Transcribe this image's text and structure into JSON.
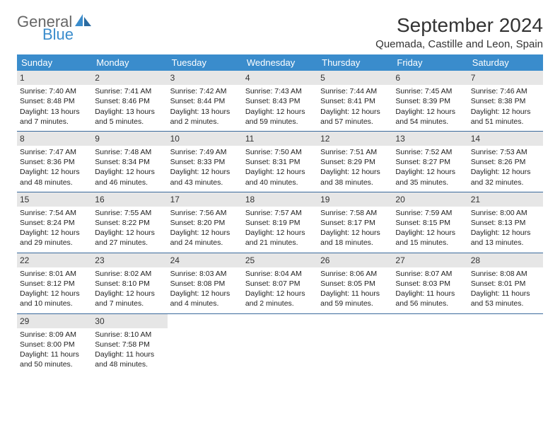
{
  "brand": {
    "part1": "General",
    "part2": "Blue"
  },
  "title": "September 2024",
  "subtitle": "Quemada, Castille and Leon, Spain",
  "colors": {
    "header_bg": "#3a8ccc",
    "header_text": "#ffffff",
    "daynum_bg": "#e6e6e6",
    "week_border": "#3a6a9c",
    "logo_gray": "#666666",
    "logo_blue": "#3a8ccc"
  },
  "day_headers": [
    "Sunday",
    "Monday",
    "Tuesday",
    "Wednesday",
    "Thursday",
    "Friday",
    "Saturday"
  ],
  "weeks": [
    [
      {
        "n": "1",
        "sunrise": "Sunrise: 7:40 AM",
        "sunset": "Sunset: 8:48 PM",
        "daylight": "Daylight: 13 hours and 7 minutes."
      },
      {
        "n": "2",
        "sunrise": "Sunrise: 7:41 AM",
        "sunset": "Sunset: 8:46 PM",
        "daylight": "Daylight: 13 hours and 5 minutes."
      },
      {
        "n": "3",
        "sunrise": "Sunrise: 7:42 AM",
        "sunset": "Sunset: 8:44 PM",
        "daylight": "Daylight: 13 hours and 2 minutes."
      },
      {
        "n": "4",
        "sunrise": "Sunrise: 7:43 AM",
        "sunset": "Sunset: 8:43 PM",
        "daylight": "Daylight: 12 hours and 59 minutes."
      },
      {
        "n": "5",
        "sunrise": "Sunrise: 7:44 AM",
        "sunset": "Sunset: 8:41 PM",
        "daylight": "Daylight: 12 hours and 57 minutes."
      },
      {
        "n": "6",
        "sunrise": "Sunrise: 7:45 AM",
        "sunset": "Sunset: 8:39 PM",
        "daylight": "Daylight: 12 hours and 54 minutes."
      },
      {
        "n": "7",
        "sunrise": "Sunrise: 7:46 AM",
        "sunset": "Sunset: 8:38 PM",
        "daylight": "Daylight: 12 hours and 51 minutes."
      }
    ],
    [
      {
        "n": "8",
        "sunrise": "Sunrise: 7:47 AM",
        "sunset": "Sunset: 8:36 PM",
        "daylight": "Daylight: 12 hours and 48 minutes."
      },
      {
        "n": "9",
        "sunrise": "Sunrise: 7:48 AM",
        "sunset": "Sunset: 8:34 PM",
        "daylight": "Daylight: 12 hours and 46 minutes."
      },
      {
        "n": "10",
        "sunrise": "Sunrise: 7:49 AM",
        "sunset": "Sunset: 8:33 PM",
        "daylight": "Daylight: 12 hours and 43 minutes."
      },
      {
        "n": "11",
        "sunrise": "Sunrise: 7:50 AM",
        "sunset": "Sunset: 8:31 PM",
        "daylight": "Daylight: 12 hours and 40 minutes."
      },
      {
        "n": "12",
        "sunrise": "Sunrise: 7:51 AM",
        "sunset": "Sunset: 8:29 PM",
        "daylight": "Daylight: 12 hours and 38 minutes."
      },
      {
        "n": "13",
        "sunrise": "Sunrise: 7:52 AM",
        "sunset": "Sunset: 8:27 PM",
        "daylight": "Daylight: 12 hours and 35 minutes."
      },
      {
        "n": "14",
        "sunrise": "Sunrise: 7:53 AM",
        "sunset": "Sunset: 8:26 PM",
        "daylight": "Daylight: 12 hours and 32 minutes."
      }
    ],
    [
      {
        "n": "15",
        "sunrise": "Sunrise: 7:54 AM",
        "sunset": "Sunset: 8:24 PM",
        "daylight": "Daylight: 12 hours and 29 minutes."
      },
      {
        "n": "16",
        "sunrise": "Sunrise: 7:55 AM",
        "sunset": "Sunset: 8:22 PM",
        "daylight": "Daylight: 12 hours and 27 minutes."
      },
      {
        "n": "17",
        "sunrise": "Sunrise: 7:56 AM",
        "sunset": "Sunset: 8:20 PM",
        "daylight": "Daylight: 12 hours and 24 minutes."
      },
      {
        "n": "18",
        "sunrise": "Sunrise: 7:57 AM",
        "sunset": "Sunset: 8:19 PM",
        "daylight": "Daylight: 12 hours and 21 minutes."
      },
      {
        "n": "19",
        "sunrise": "Sunrise: 7:58 AM",
        "sunset": "Sunset: 8:17 PM",
        "daylight": "Daylight: 12 hours and 18 minutes."
      },
      {
        "n": "20",
        "sunrise": "Sunrise: 7:59 AM",
        "sunset": "Sunset: 8:15 PM",
        "daylight": "Daylight: 12 hours and 15 minutes."
      },
      {
        "n": "21",
        "sunrise": "Sunrise: 8:00 AM",
        "sunset": "Sunset: 8:13 PM",
        "daylight": "Daylight: 12 hours and 13 minutes."
      }
    ],
    [
      {
        "n": "22",
        "sunrise": "Sunrise: 8:01 AM",
        "sunset": "Sunset: 8:12 PM",
        "daylight": "Daylight: 12 hours and 10 minutes."
      },
      {
        "n": "23",
        "sunrise": "Sunrise: 8:02 AM",
        "sunset": "Sunset: 8:10 PM",
        "daylight": "Daylight: 12 hours and 7 minutes."
      },
      {
        "n": "24",
        "sunrise": "Sunrise: 8:03 AM",
        "sunset": "Sunset: 8:08 PM",
        "daylight": "Daylight: 12 hours and 4 minutes."
      },
      {
        "n": "25",
        "sunrise": "Sunrise: 8:04 AM",
        "sunset": "Sunset: 8:07 PM",
        "daylight": "Daylight: 12 hours and 2 minutes."
      },
      {
        "n": "26",
        "sunrise": "Sunrise: 8:06 AM",
        "sunset": "Sunset: 8:05 PM",
        "daylight": "Daylight: 11 hours and 59 minutes."
      },
      {
        "n": "27",
        "sunrise": "Sunrise: 8:07 AM",
        "sunset": "Sunset: 8:03 PM",
        "daylight": "Daylight: 11 hours and 56 minutes."
      },
      {
        "n": "28",
        "sunrise": "Sunrise: 8:08 AM",
        "sunset": "Sunset: 8:01 PM",
        "daylight": "Daylight: 11 hours and 53 minutes."
      }
    ],
    [
      {
        "n": "29",
        "sunrise": "Sunrise: 8:09 AM",
        "sunset": "Sunset: 8:00 PM",
        "daylight": "Daylight: 11 hours and 50 minutes."
      },
      {
        "n": "30",
        "sunrise": "Sunrise: 8:10 AM",
        "sunset": "Sunset: 7:58 PM",
        "daylight": "Daylight: 11 hours and 48 minutes."
      },
      null,
      null,
      null,
      null,
      null
    ]
  ]
}
